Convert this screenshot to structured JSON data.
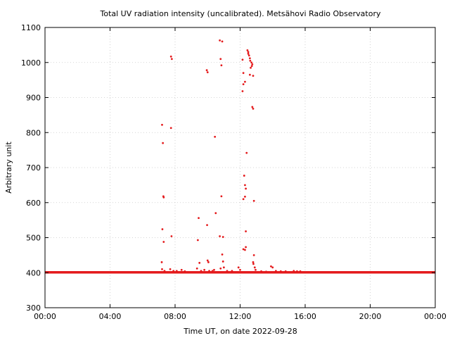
{
  "chart_data": {
    "type": "scatter",
    "title": "Total UV radiation intensity (uncalibrated). Metsähovi Radio Observatory",
    "xlabel": "Time UT, on date 2022-09-28",
    "ylabel": "Arbitrary unit",
    "x_unit": "hours UT",
    "xlim": [
      0,
      24
    ],
    "ylim": [
      300,
      1100
    ],
    "x_ticks": [
      {
        "value": 0,
        "label": "00:00"
      },
      {
        "value": 4,
        "label": "04:00"
      },
      {
        "value": 8,
        "label": "08:00"
      },
      {
        "value": 12,
        "label": "12:00"
      },
      {
        "value": 16,
        "label": "16:00"
      },
      {
        "value": 20,
        "label": "20:00"
      },
      {
        "value": 24,
        "label": "00:00"
      }
    ],
    "y_ticks": [
      300,
      400,
      500,
      600,
      700,
      800,
      900,
      1000,
      1100
    ],
    "grid": true,
    "marker_color": "#e41a1c",
    "baseline": {
      "value": 401,
      "x_start": 0,
      "x_end": 24
    },
    "series": [
      {
        "points": [
          [
            7.2,
            822
          ],
          [
            7.25,
            770
          ],
          [
            7.28,
            618
          ],
          [
            7.3,
            615
          ],
          [
            7.22,
            524
          ],
          [
            7.3,
            488
          ],
          [
            7.18,
            430
          ],
          [
            7.2,
            410
          ],
          [
            7.35,
            405
          ],
          [
            7.75,
            1017
          ],
          [
            7.8,
            1010
          ],
          [
            7.75,
            813
          ],
          [
            7.78,
            504
          ],
          [
            7.7,
            410
          ],
          [
            7.9,
            405
          ],
          [
            8.1,
            405
          ],
          [
            8.4,
            408
          ],
          [
            8.6,
            404
          ],
          [
            9.45,
            556
          ],
          [
            9.4,
            493
          ],
          [
            9.5,
            428
          ],
          [
            9.35,
            412
          ],
          [
            9.6,
            405
          ],
          [
            9.8,
            408
          ],
          [
            9.95,
            978
          ],
          [
            10.0,
            972
          ],
          [
            9.97,
            536
          ],
          [
            10.0,
            435
          ],
          [
            10.05,
            430
          ],
          [
            10.1,
            405
          ],
          [
            10.3,
            405
          ],
          [
            10.45,
            788
          ],
          [
            10.5,
            570
          ],
          [
            10.4,
            408
          ],
          [
            10.75,
            1063
          ],
          [
            10.9,
            1060
          ],
          [
            10.8,
            1010
          ],
          [
            10.85,
            992
          ],
          [
            10.85,
            618
          ],
          [
            10.75,
            504
          ],
          [
            10.95,
            502
          ],
          [
            10.9,
            452
          ],
          [
            10.95,
            432
          ],
          [
            10.8,
            412
          ],
          [
            11.0,
            415
          ],
          [
            11.2,
            405
          ],
          [
            11.5,
            405
          ],
          [
            11.9,
            415
          ],
          [
            12.0,
            408
          ],
          [
            12.15,
            1008
          ],
          [
            12.2,
            970
          ],
          [
            12.2,
            938
          ],
          [
            12.15,
            918
          ],
          [
            12.3,
            945
          ],
          [
            12.25,
            677
          ],
          [
            12.3,
            650
          ],
          [
            12.35,
            640
          ],
          [
            12.3,
            617
          ],
          [
            12.2,
            610
          ],
          [
            12.35,
            518
          ],
          [
            12.35,
            473
          ],
          [
            12.3,
            465
          ],
          [
            12.2,
            467
          ],
          [
            12.4,
            742
          ],
          [
            12.45,
            1035
          ],
          [
            12.5,
            1030
          ],
          [
            12.5,
            1025
          ],
          [
            12.55,
            1020
          ],
          [
            12.6,
            1012
          ],
          [
            12.62,
            1005
          ],
          [
            12.7,
            1000
          ],
          [
            12.75,
            995
          ],
          [
            12.72,
            990
          ],
          [
            12.65,
            985
          ],
          [
            12.6,
            965
          ],
          [
            12.8,
            962
          ],
          [
            12.75,
            873
          ],
          [
            12.8,
            868
          ],
          [
            12.85,
            605
          ],
          [
            12.85,
            450
          ],
          [
            12.8,
            430
          ],
          [
            12.82,
            425
          ],
          [
            12.9,
            415
          ],
          [
            12.95,
            408
          ],
          [
            13.3,
            404
          ],
          [
            13.6,
            403
          ],
          [
            13.9,
            418
          ],
          [
            14.0,
            415
          ],
          [
            14.2,
            405
          ],
          [
            14.5,
            404
          ],
          [
            14.8,
            404
          ],
          [
            15.3,
            405
          ],
          [
            15.5,
            404
          ],
          [
            15.7,
            404
          ]
        ]
      }
    ]
  }
}
